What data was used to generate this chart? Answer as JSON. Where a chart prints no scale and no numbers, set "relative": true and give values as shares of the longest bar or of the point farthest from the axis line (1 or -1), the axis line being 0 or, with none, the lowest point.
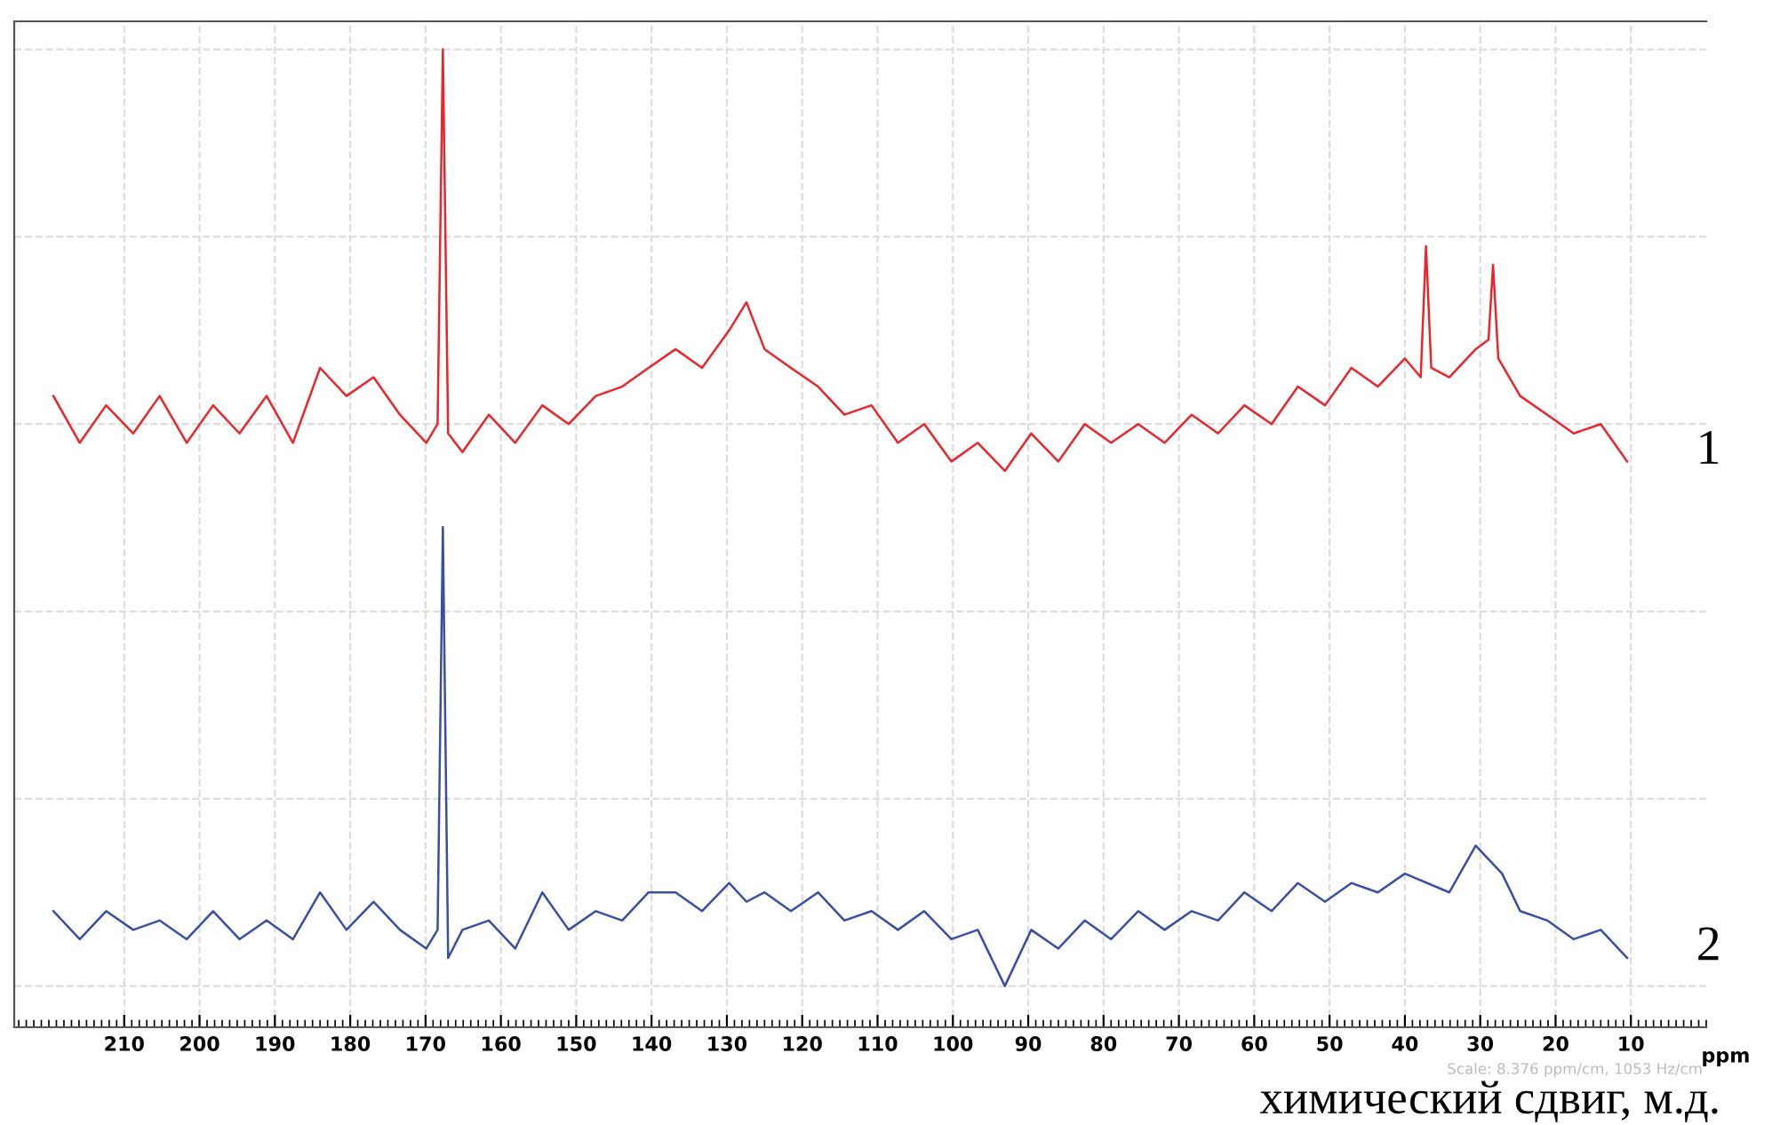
{
  "chart_data": {
    "type": "line",
    "relative": true,
    "xlabel": "ppm",
    "xlim": [
      224.6,
      0
    ],
    "xticks": [
      210,
      200,
      190,
      180,
      170,
      160,
      150,
      140,
      130,
      120,
      110,
      100,
      90,
      80,
      70,
      60,
      50,
      40,
      30,
      20,
      10
    ],
    "grid": true,
    "legend": false,
    "marker": "none",
    "line_style": "solid",
    "annotations": [
      "Scale: 8.376 ppm/cm, 1053 Hz/cm",
      "химический сдвиг, м.д."
    ],
    "series": [
      {
        "name": "1",
        "color": "#e8262b",
        "x": [
          219.4,
          215.9,
          212.4,
          208.8,
          205.3,
          201.7,
          198.2,
          194.7,
          191.1,
          187.6,
          184.0,
          180.5,
          176.9,
          173.4,
          169.9,
          168.4,
          167.7,
          167.0,
          165.1,
          161.6,
          158.1,
          154.5,
          151.0,
          147.4,
          143.9,
          140.4,
          136.8,
          133.3,
          129.7,
          127.4,
          125.0,
          121.5,
          117.9,
          114.4,
          110.8,
          107.3,
          103.8,
          100.2,
          96.7,
          93.1,
          89.6,
          86.0,
          82.5,
          79.0,
          75.4,
          71.9,
          68.3,
          64.8,
          61.3,
          57.7,
          54.2,
          50.6,
          47.1,
          43.6,
          40.0,
          37.9,
          37.2,
          36.5,
          34.1,
          30.6,
          28.9,
          28.3,
          27.6,
          24.7,
          21.1,
          17.6,
          14.0,
          10.5
        ],
        "values": [
          0.63,
          0.58,
          0.62,
          0.59,
          0.63,
          0.58,
          0.62,
          0.59,
          0.63,
          0.58,
          0.66,
          0.63,
          0.65,
          0.61,
          0.58,
          0.6,
          1.0,
          0.59,
          0.57,
          0.61,
          0.58,
          0.62,
          0.6,
          0.63,
          0.64,
          0.66,
          0.68,
          0.66,
          0.7,
          0.73,
          0.68,
          0.66,
          0.64,
          0.61,
          0.62,
          0.58,
          0.6,
          0.56,
          0.58,
          0.55,
          0.59,
          0.56,
          0.6,
          0.58,
          0.6,
          0.58,
          0.61,
          0.59,
          0.62,
          0.6,
          0.64,
          0.62,
          0.66,
          0.64,
          0.67,
          0.65,
          0.79,
          0.66,
          0.65,
          0.68,
          0.69,
          0.77,
          0.67,
          0.63,
          0.61,
          0.59,
          0.6,
          0.56
        ]
      },
      {
        "name": "2",
        "color": "#3a4fa3",
        "x": [
          219.4,
          215.9,
          212.4,
          208.8,
          205.3,
          201.7,
          198.2,
          194.7,
          191.1,
          187.6,
          184.0,
          180.5,
          176.9,
          173.4,
          169.9,
          168.4,
          167.7,
          167.0,
          165.1,
          161.6,
          158.1,
          154.5,
          151.0,
          147.4,
          143.9,
          140.4,
          136.8,
          133.3,
          129.7,
          127.4,
          125.0,
          121.5,
          117.9,
          114.4,
          110.8,
          107.3,
          103.8,
          100.2,
          96.7,
          93.1,
          89.6,
          86.0,
          82.5,
          79.0,
          75.4,
          71.9,
          68.3,
          64.8,
          61.3,
          57.7,
          54.2,
          50.6,
          47.1,
          43.6,
          40.0,
          34.1,
          30.6,
          27.1,
          24.7,
          21.1,
          17.6,
          14.0,
          10.5
        ],
        "values": [
          0.08,
          0.05,
          0.08,
          0.06,
          0.07,
          0.05,
          0.08,
          0.05,
          0.07,
          0.05,
          0.1,
          0.06,
          0.09,
          0.06,
          0.04,
          0.06,
          0.49,
          0.03,
          0.06,
          0.07,
          0.04,
          0.1,
          0.06,
          0.08,
          0.07,
          0.1,
          0.1,
          0.08,
          0.11,
          0.09,
          0.1,
          0.08,
          0.1,
          0.07,
          0.08,
          0.06,
          0.08,
          0.05,
          0.06,
          0.0,
          0.06,
          0.04,
          0.07,
          0.05,
          0.08,
          0.06,
          0.08,
          0.07,
          0.1,
          0.08,
          0.11,
          0.09,
          0.11,
          0.1,
          0.12,
          0.1,
          0.15,
          0.12,
          0.08,
          0.07,
          0.05,
          0.06,
          0.03
        ]
      }
    ]
  }
}
